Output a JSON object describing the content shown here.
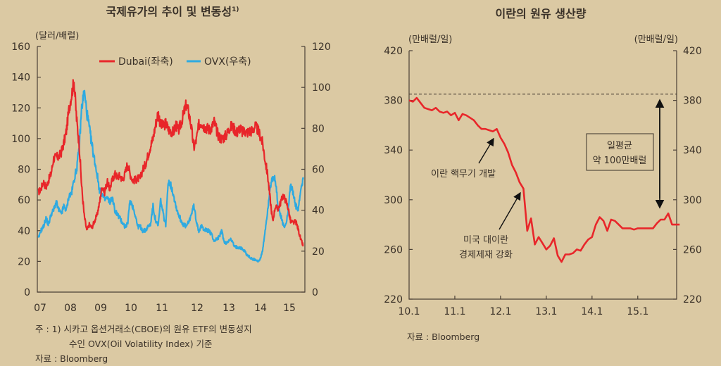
{
  "left": {
    "title": "국제유가의 추이 및 변동성",
    "title_sup": "1)",
    "unit_left": "(달러/배럴)",
    "footnote_1": "주 : 1) 시카고 옵션거래소(CBOE)의 원유 ETF의 변동성지",
    "footnote_2": "수인 OVX(Oil Volatility Index) 기준",
    "source": "자료 : Bloomberg"
  },
  "right": {
    "title": "이란의 원유 생산량",
    "unit_left": "(만배럴/일)",
    "unit_right": "(만배럴/일)",
    "annotation_1": "이란 핵무기 개발",
    "annotation_2_line1": "미국 대이란",
    "annotation_2_line2": "경제제재 강화",
    "box_line1": "일평균",
    "box_line2": "약 100만배럴",
    "source": "자료 : Bloomberg"
  },
  "chart_data": [
    {
      "type": "line",
      "title": "국제유가의 추이 및 변동성1)",
      "ylabel": "(달러/배럴)",
      "x_ticks": [
        "07",
        "08",
        "09",
        "10",
        "11",
        "12",
        "13",
        "14",
        "15"
      ],
      "y_left_ticks": [
        0,
        20,
        40,
        60,
        80,
        100,
        120,
        140,
        160
      ],
      "y_right_ticks": [
        0,
        20,
        40,
        60,
        80,
        100,
        120
      ],
      "ylim_left": [
        0,
        160
      ],
      "ylim_right": [
        0,
        120
      ],
      "legend_position": "top",
      "start": "2007-05",
      "frequency": "monthly",
      "series": [
        {
          "name": "Dubai(좌축)",
          "axis": "left",
          "color": "#e8262a",
          "values": [
            65,
            67,
            72,
            68,
            73,
            77,
            87,
            88,
            88,
            91,
            97,
            105,
            119,
            128,
            138,
            113,
            97,
            69,
            50,
            40,
            44,
            42,
            46,
            50,
            58,
            69,
            65,
            72,
            67,
            73,
            77,
            75,
            76,
            73,
            77,
            84,
            77,
            73,
            73,
            74,
            74,
            80,
            83,
            89,
            95,
            100,
            109,
            117,
            109,
            108,
            110,
            106,
            105,
            104,
            109,
            105,
            110,
            116,
            122,
            117,
            108,
            94,
            99,
            109,
            111,
            108,
            107,
            106,
            107,
            111,
            105,
            101,
            100,
            101,
            103,
            107,
            108,
            106,
            104,
            107,
            104,
            105,
            104,
            105,
            105,
            108,
            106,
            102,
            97,
            86,
            76,
            60,
            46,
            56,
            54,
            58,
            63,
            60,
            55,
            46,
            45,
            46,
            41,
            34,
            30
          ]
        },
        {
          "name": "OVX(우축)",
          "axis": "right",
          "color": "#2eaae1",
          "values": [
            26,
            30,
            32,
            36,
            33,
            38,
            40,
            44,
            40,
            38,
            42,
            40,
            47,
            48,
            55,
            60,
            70,
            90,
            98,
            88,
            80,
            72,
            65,
            58,
            50,
            48,
            45,
            46,
            44,
            46,
            40,
            38,
            36,
            34,
            32,
            33,
            45,
            42,
            38,
            32,
            32,
            30,
            30,
            32,
            33,
            42,
            35,
            32,
            45,
            38,
            33,
            55,
            52,
            48,
            42,
            38,
            35,
            33,
            32,
            34,
            38,
            42,
            35,
            30,
            32,
            31,
            30,
            30,
            28,
            25,
            26,
            27,
            30,
            24,
            24,
            26,
            25,
            22,
            22,
            22,
            21,
            20,
            18,
            17,
            16,
            16,
            15,
            16,
            20,
            30,
            40,
            52,
            55,
            55,
            42,
            38,
            33,
            32,
            40,
            53,
            48,
            42,
            40,
            50,
            55
          ]
        }
      ]
    },
    {
      "type": "line",
      "title": "이란의 원유 생산량",
      "ylabel": "(만배럴/일)",
      "x_ticks": [
        "10.1",
        "11.1",
        "12.1",
        "13.1",
        "14.1",
        "15.1"
      ],
      "y_ticks": [
        220,
        260,
        300,
        340,
        380,
        420
      ],
      "ylim": [
        220,
        420
      ],
      "reference_line": 385,
      "start": "2010-01",
      "frequency": "monthly",
      "series": [
        {
          "color": "#e8262a",
          "values": [
            380,
            379,
            382,
            378,
            374,
            373,
            372,
            374,
            371,
            370,
            371,
            368,
            370,
            364,
            369,
            368,
            366,
            364,
            360,
            357,
            357,
            356,
            355,
            357,
            350,
            345,
            338,
            328,
            322,
            314,
            309,
            275,
            285,
            264,
            270,
            265,
            260,
            263,
            269,
            255,
            250,
            256,
            256,
            257,
            260,
            259,
            264,
            268,
            270,
            280,
            286,
            283,
            275,
            284,
            283,
            280,
            277,
            277,
            277,
            276,
            277,
            277,
            277,
            277,
            277,
            281,
            284,
            284,
            289,
            280,
            280,
            280
          ]
        }
      ]
    }
  ]
}
